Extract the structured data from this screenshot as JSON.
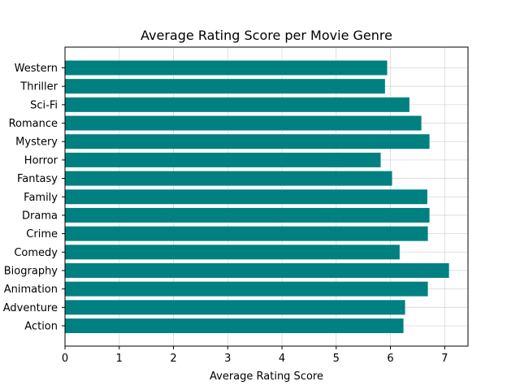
{
  "chart_data": {
    "type": "bar",
    "orientation": "horizontal",
    "title": "Average Rating Score per Movie Genre",
    "xlabel": "Average Rating Score",
    "ylabel": "",
    "categories": [
      "Action",
      "Adventure",
      "Animation",
      "Biography",
      "Comedy",
      "Crime",
      "Drama",
      "Family",
      "Fantasy",
      "Horror",
      "Mystery",
      "Romance",
      "Sci-Fi",
      "Thriller",
      "Western"
    ],
    "values": [
      6.24,
      6.27,
      6.69,
      7.08,
      6.17,
      6.69,
      6.72,
      6.68,
      6.03,
      5.82,
      6.72,
      6.57,
      6.35,
      5.9,
      5.94
    ],
    "xlim": [
      0,
      7.43
    ],
    "xticks": [
      0,
      1,
      2,
      3,
      4,
      5,
      6,
      7
    ],
    "grid": true,
    "bar_color": "#008080"
  }
}
